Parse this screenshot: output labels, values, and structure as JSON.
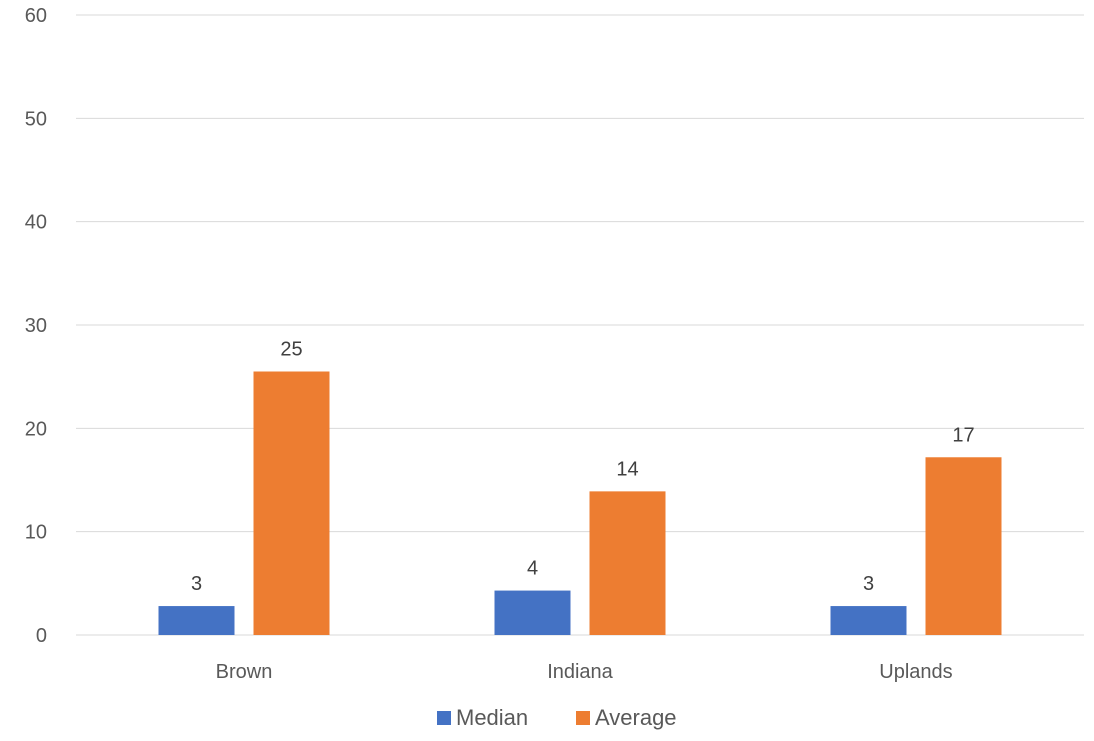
{
  "chart_data": {
    "type": "bar",
    "categories": [
      "Brown",
      "Indiana",
      "Uplands"
    ],
    "series": [
      {
        "name": "Median",
        "values": [
          2.8,
          4.3,
          2.8
        ],
        "labels": [
          "3",
          "4",
          "3"
        ],
        "color": "#4472C4"
      },
      {
        "name": "Average",
        "values": [
          25.5,
          13.9,
          17.2
        ],
        "labels": [
          "25",
          "14",
          "17"
        ],
        "color": "#ED7D31"
      }
    ],
    "ylim": [
      0,
      60
    ],
    "yticks": [
      "0",
      "10",
      "20",
      "30",
      "40",
      "50",
      "60"
    ],
    "grid": true,
    "legend": "bottom"
  }
}
